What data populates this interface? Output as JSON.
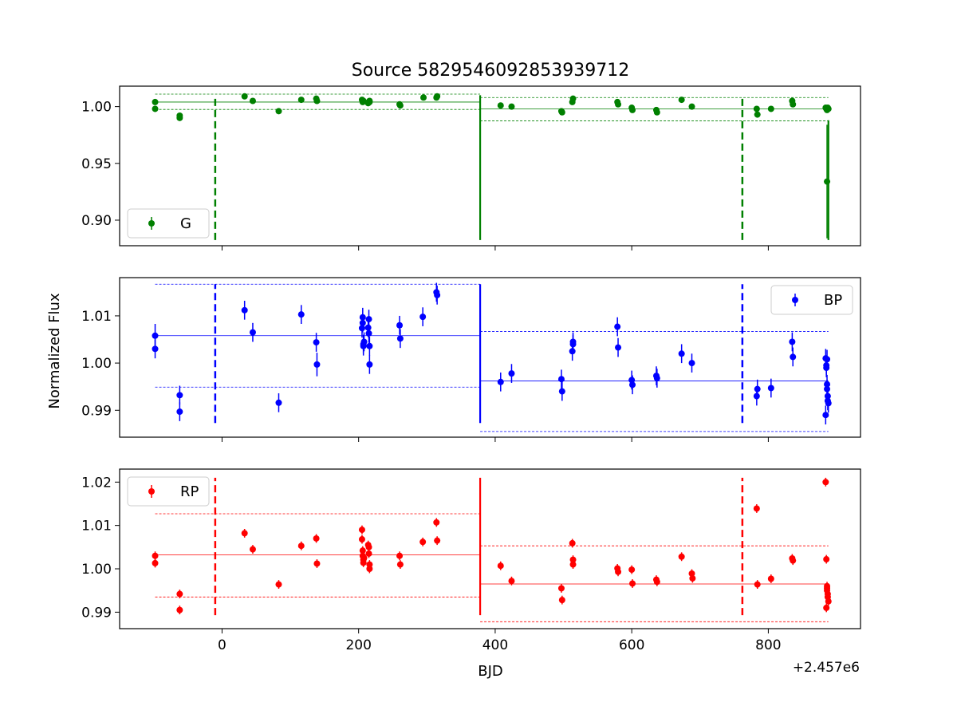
{
  "chart_data": {
    "type": "scatter",
    "title": "Source 5829546092853939712",
    "xlabel": "BJD",
    "ylabel": "Normalized Flux",
    "x_offset_label": "+2.457e6",
    "xlim": [
      -150,
      935
    ],
    "x_ticks": [
      0,
      200,
      400,
      600,
      800
    ],
    "panels": [
      {
        "band": "G",
        "color": "#008000",
        "legend_position": "bottom-left",
        "ylim": [
          0.8775,
          1.018
        ],
        "y_ticks": [
          0.9,
          0.95,
          1.0
        ],
        "y_tick_labels": [
          "0.90",
          "0.95",
          "1.00"
        ],
        "x": [
          -98,
          -98,
          -62,
          -62,
          33,
          45,
          83,
          116,
          138,
          139,
          205,
          206,
          207,
          214,
          216,
          216,
          260,
          261,
          295,
          314,
          315,
          408,
          424,
          497,
          498,
          513,
          514,
          579,
          580,
          600,
          601,
          636,
          637,
          673,
          688,
          783,
          784,
          804,
          835,
          836,
          884,
          885,
          886,
          887,
          888,
          886
        ],
        "y": [
          1.004,
          0.998,
          0.992,
          0.99,
          1.009,
          1.005,
          0.996,
          1.006,
          1.007,
          1.005,
          1.006,
          1.004,
          1.005,
          1.003,
          1.004,
          1.005,
          1.002,
          1.001,
          1.008,
          1.008,
          1.009,
          1.001,
          1.0,
          0.996,
          0.995,
          1.004,
          1.007,
          1.004,
          1.002,
          0.999,
          0.997,
          0.997,
          0.995,
          1.006,
          1.0,
          0.998,
          0.993,
          0.998,
          1.005,
          1.002,
          0.999,
          0.998,
          0.997,
          0.999,
          0.998,
          0.934
        ],
        "yerr": [
          0.001,
          0.001,
          0.001,
          0.001,
          0.001,
          0.001,
          0.001,
          0.001,
          0.001,
          0.001,
          0.001,
          0.001,
          0.001,
          0.001,
          0.001,
          0.001,
          0.001,
          0.001,
          0.001,
          0.001,
          0.001,
          0.001,
          0.001,
          0.001,
          0.001,
          0.001,
          0.001,
          0.001,
          0.001,
          0.001,
          0.001,
          0.001,
          0.001,
          0.001,
          0.001,
          0.001,
          0.001,
          0.001,
          0.001,
          0.001,
          0.001,
          0.001,
          0.001,
          0.001,
          0.001,
          0.05
        ],
        "segments": [
          {
            "x": [
              -98,
              378
            ],
            "mean": 1.004,
            "upper": 1.011,
            "lower": 0.9975
          },
          {
            "x": [
              378,
              888
            ],
            "mean": 0.998,
            "upper": 1.008,
            "lower": 0.9875
          }
        ],
        "dashed_vlines": [
          {
            "x": -10,
            "y": [
              0.8825,
              1.0075
            ]
          },
          {
            "x": 762,
            "y": [
              0.8825,
              1.0075
            ]
          }
        ],
        "solid_vlines": [
          {
            "x": 378,
            "y": [
              0.8825,
              1.01
            ]
          },
          {
            "x": 888,
            "y": [
              0.8825,
              0.988
            ]
          }
        ]
      },
      {
        "band": "BP",
        "color": "#0000ff",
        "legend_position": "top-right",
        "ylim": [
          0.9843,
          1.0181
        ],
        "y_ticks": [
          0.99,
          1.0,
          1.01
        ],
        "y_tick_labels": [
          "0.99",
          "1.00",
          "1.01"
        ],
        "x": [
          -98,
          -98,
          -62,
          -62,
          33,
          45,
          83,
          116,
          138,
          139,
          205,
          206,
          206,
          207,
          207,
          208,
          214,
          215,
          215,
          216,
          216,
          260,
          261,
          294,
          314,
          315,
          408,
          424,
          497,
          498,
          513,
          514,
          514,
          579,
          580,
          600,
          601,
          636,
          637,
          673,
          688,
          783,
          784,
          804,
          835,
          836,
          884,
          885,
          885,
          886,
          886,
          887,
          887,
          888,
          884,
          886
        ],
        "y": [
          1.0058,
          1.003,
          0.9932,
          0.9897,
          1.0112,
          1.0065,
          0.9916,
          1.0103,
          1.0044,
          0.9997,
          1.0074,
          1.0085,
          1.0097,
          1.004,
          1.0036,
          1.0045,
          1.0075,
          1.0063,
          1.0093,
          1.0036,
          0.9997,
          1.008,
          1.0052,
          1.0098,
          1.015,
          1.0144,
          0.996,
          0.9978,
          0.9966,
          0.994,
          1.0025,
          1.0045,
          1.004,
          1.0077,
          1.0033,
          0.9964,
          0.9954,
          0.9973,
          0.9968,
          1.002,
          1.0,
          0.993,
          0.9945,
          0.9947,
          1.0045,
          1.0013,
          1.001,
          0.9995,
          0.999,
          0.9955,
          0.9945,
          0.993,
          0.992,
          0.9915,
          0.989,
          1.0008
        ],
        "yerr": [
          0.0025,
          0.002,
          0.002,
          0.002,
          0.002,
          0.002,
          0.002,
          0.002,
          0.002,
          0.0025,
          0.002,
          0.002,
          0.002,
          0.002,
          0.002,
          0.002,
          0.002,
          0.002,
          0.002,
          0.002,
          0.002,
          0.002,
          0.002,
          0.002,
          0.002,
          0.002,
          0.002,
          0.002,
          0.002,
          0.002,
          0.002,
          0.002,
          0.002,
          0.002,
          0.002,
          0.002,
          0.002,
          0.002,
          0.002,
          0.002,
          0.002,
          0.002,
          0.002,
          0.002,
          0.002,
          0.002,
          0.002,
          0.002,
          0.002,
          0.002,
          0.002,
          0.002,
          0.002,
          0.002,
          0.002,
          0.002
        ],
        "segments": [
          {
            "x": [
              -98,
              378
            ],
            "mean": 1.0058,
            "upper": 1.0167,
            "lower": 0.9949
          },
          {
            "x": [
              378,
              888
            ],
            "mean": 0.9962,
            "upper": 1.0067,
            "lower": 0.9855
          }
        ],
        "dashed_vlines": [
          {
            "x": -10,
            "y": [
              0.9873,
              1.0167
            ]
          },
          {
            "x": 762,
            "y": [
              0.9873,
              1.0167
            ]
          }
        ],
        "solid_vlines": [
          {
            "x": 378,
            "y": [
              0.9873,
              1.0167
            ]
          }
        ]
      },
      {
        "band": "RP",
        "color": "#ff0000",
        "legend_position": "top-left",
        "ylim": [
          0.9862,
          1.023
        ],
        "y_ticks": [
          0.99,
          1.0,
          1.01,
          1.02
        ],
        "y_tick_labels": [
          "0.99",
          "1.00",
          "1.01",
          "1.02"
        ],
        "x": [
          -98,
          -98,
          -62,
          -62,
          33,
          45,
          83,
          116,
          138,
          139,
          205,
          205,
          206,
          206,
          207,
          207,
          208,
          214,
          215,
          215,
          216,
          216,
          260,
          261,
          294,
          314,
          315,
          408,
          424,
          497,
          498,
          513,
          514,
          514,
          579,
          580,
          600,
          601,
          636,
          637,
          673,
          688,
          689,
          783,
          784,
          804,
          835,
          836,
          884,
          885,
          886,
          886,
          887,
          887,
          888,
          885,
          886
        ],
        "y": [
          1.003,
          1.0013,
          0.9942,
          0.9905,
          1.0082,
          1.0045,
          0.9964,
          1.0053,
          1.007,
          1.0012,
          1.009,
          1.0068,
          1.0042,
          1.003,
          1.0021,
          1.0014,
          1.0025,
          1.0055,
          1.005,
          1.0035,
          1.001,
          1.0,
          1.003,
          1.001,
          1.0062,
          1.0107,
          1.0065,
          1.0007,
          0.9972,
          0.9955,
          0.9928,
          1.0059,
          1.0021,
          1.001,
          1.0001,
          0.9993,
          0.9998,
          0.9966,
          0.9975,
          0.997,
          1.0028,
          0.9989,
          0.9978,
          1.0139,
          0.9964,
          0.9977,
          1.0024,
          1.0019,
          1.02,
          1.0022,
          0.996,
          0.995,
          0.9942,
          0.9935,
          0.9925,
          0.991,
          0.9955
        ],
        "yerr": [
          0.001,
          0.001,
          0.001,
          0.001,
          0.001,
          0.001,
          0.001,
          0.001,
          0.001,
          0.001,
          0.001,
          0.001,
          0.001,
          0.001,
          0.001,
          0.001,
          0.001,
          0.001,
          0.001,
          0.001,
          0.001,
          0.001,
          0.001,
          0.001,
          0.001,
          0.001,
          0.001,
          0.001,
          0.001,
          0.001,
          0.001,
          0.001,
          0.001,
          0.001,
          0.001,
          0.001,
          0.001,
          0.001,
          0.001,
          0.001,
          0.001,
          0.001,
          0.001,
          0.001,
          0.001,
          0.001,
          0.001,
          0.001,
          0.001,
          0.001,
          0.001,
          0.001,
          0.001,
          0.001,
          0.001,
          0.001,
          0.001
        ],
        "segments": [
          {
            "x": [
              -98,
              378
            ],
            "mean": 1.0032,
            "upper": 1.0127,
            "lower": 0.9935
          },
          {
            "x": [
              378,
              888
            ],
            "mean": 0.9965,
            "upper": 1.0053,
            "lower": 0.9878
          }
        ],
        "dashed_vlines": [
          {
            "x": -10,
            "y": [
              0.9893,
              1.021
            ]
          },
          {
            "x": 762,
            "y": [
              0.9893,
              1.021
            ]
          }
        ],
        "solid_vlines": [
          {
            "x": 378,
            "y": [
              0.9893,
              1.021
            ]
          }
        ]
      }
    ]
  }
}
